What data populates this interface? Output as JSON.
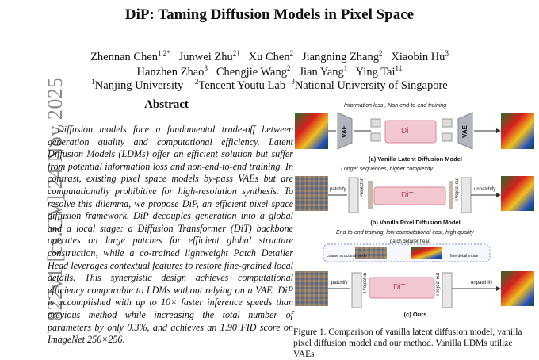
{
  "margin_stamp": "822v1  [cs.CV]  24 Nov 2025",
  "title": "DiP: Taming Diffusion Models in Pixel Space",
  "authors": {
    "row1": [
      {
        "name": "Zhennan Chen",
        "sup": "1,2*"
      },
      {
        "name": "Junwei Zhu",
        "sup": "2†"
      },
      {
        "name": "Xu Chen",
        "sup": "2"
      },
      {
        "name": "Jiangning Zhang",
        "sup": "2"
      },
      {
        "name": "Xiaobin Hu",
        "sup": "3"
      }
    ],
    "row2": [
      {
        "name": "Hanzhen Zhao",
        "sup": "3"
      },
      {
        "name": "Chengjie Wang",
        "sup": "2"
      },
      {
        "name": "Jian Yang",
        "sup": "1"
      },
      {
        "name": "Ying Tai",
        "sup": "1‡"
      }
    ],
    "affiliations": [
      {
        "sup": "1",
        "name": "Nanjing University"
      },
      {
        "sup": "2",
        "name": "Tencent Youtu Lab"
      },
      {
        "sup": "3",
        "name": "National University of Singapore"
      }
    ]
  },
  "abstract": {
    "heading": "Abstract",
    "body": "Diffusion models face a fundamental trade-off between generation quality and computational efficiency. Latent Diffusion Models (LDMs) offer an efficient solution but suffer from potential information loss and non-end-to-end training. In contrast, existing pixel space models by-pass VAEs but are computationally prohibitive for high-resolution synthesis. To resolve this dilemma, we propose DiP, an efficient pixel space diffusion framework. DiP decouples generation into a global and a local stage: a Diffusion Transformer (DiT) backbone operates on large patches for efficient global structure construction, while a co-trained lightweight Patch Detailer Head leverages contextual features to restore fine-grained local details. This synergistic design achieves computational efficiency comparable to LDMs without relying on a VAE. DiP is accomplished with up to 10× faster inference speeds than previous method while increasing the total number of parameters by only 0.3%, and achieves an 1.90 FID score on ImageNet 256×256."
  },
  "figure": {
    "panel_a": {
      "note": "Information loss , Non-end-to-end training",
      "title": "(a) Vanilla Latent Diffusion Model",
      "vae_in": "VAE",
      "vae_out": "VAE",
      "dit": "DiT"
    },
    "panel_b": {
      "note": "Longer sequences, higher complexity",
      "title": "(b) Vanilla Pixel Diffusion Model",
      "patchify": "patchify",
      "unpatchify": "unpatchify",
      "project_in": "Project in",
      "project_out": "Project out",
      "dit": "DiT"
    },
    "panel_c": {
      "note": "End-to-end training, low computational cost, high quality",
      "title": "(c) Ours",
      "head": "patch detailer head",
      "coarse": "coarse structural mode",
      "fine": "fine detail mode",
      "patchify": "patchify",
      "unpatchify": "unpatchify",
      "dit": "DiT",
      "project_in": "Project in",
      "project_out": "Project out"
    }
  },
  "caption": "Figure 1.  Comparison of vanilla latent diffusion model, vanilla pixel diffusion model and our method. Vanilla LDMs utilize VAEs",
  "colors": {
    "dit_fill": "#f3c7cf",
    "dit_border": "#d98a98",
    "vae": "#b0b5c0",
    "stamp": "#8a8a8a"
  }
}
